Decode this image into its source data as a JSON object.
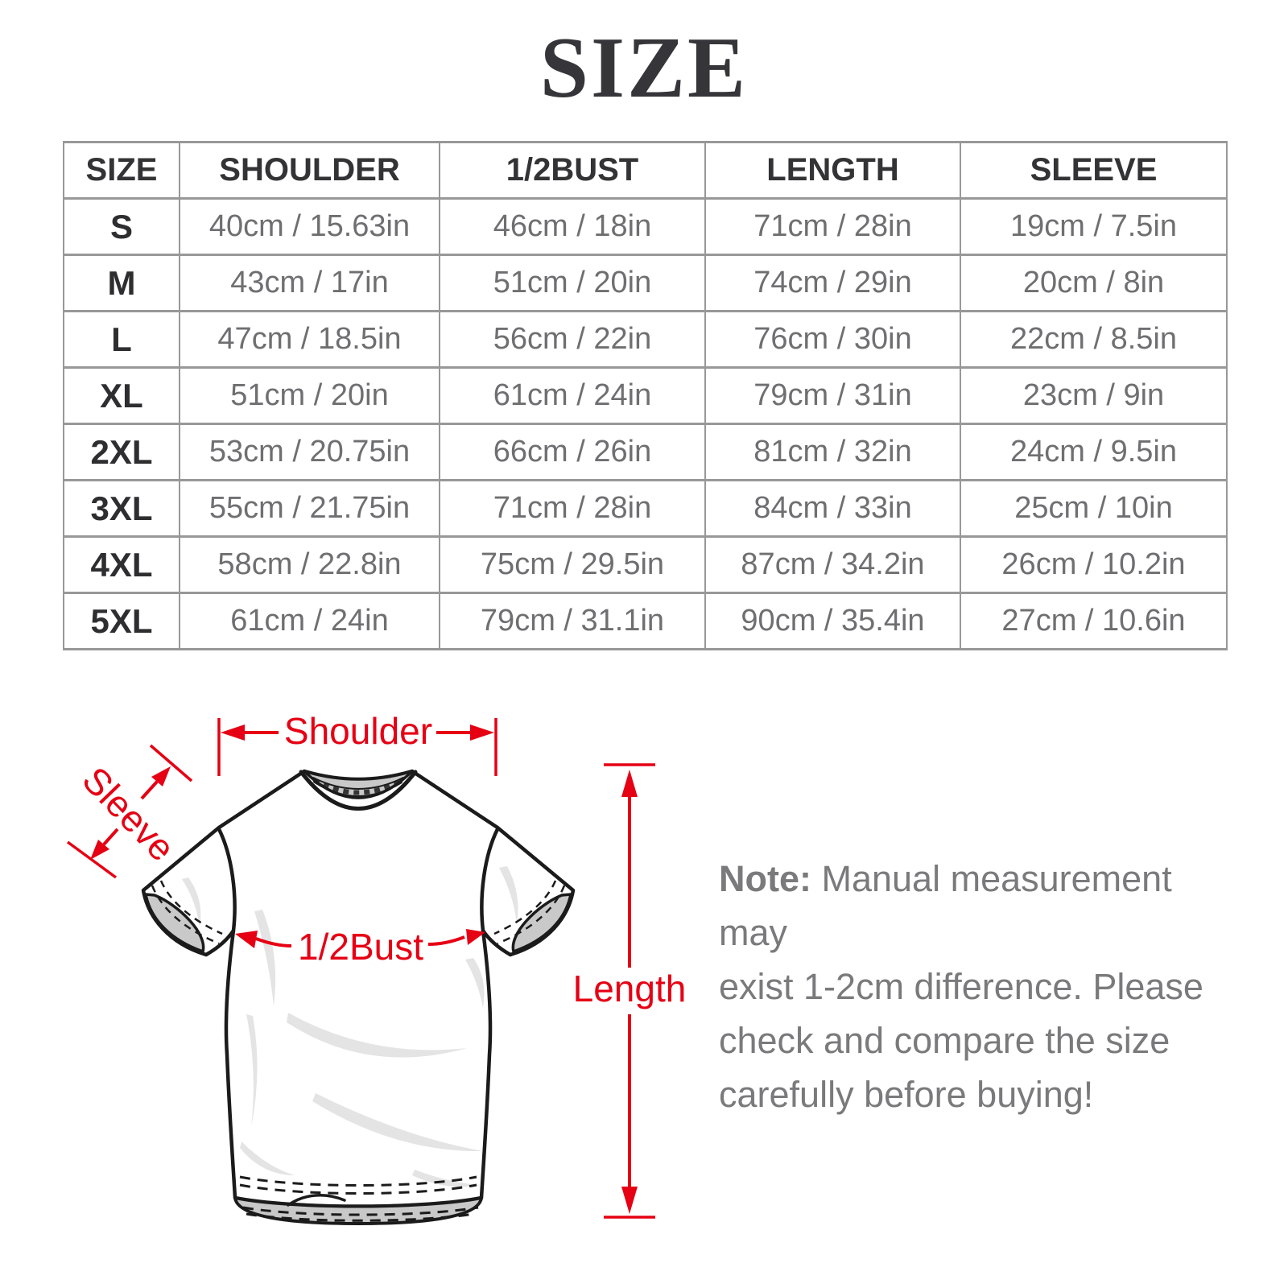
{
  "title": "SIZE",
  "chart_data": {
    "type": "table",
    "title": "SIZE",
    "columns": [
      "SIZE",
      "SHOULDER",
      "1/2BUST",
      "LENGTH",
      "SLEEVE"
    ],
    "rows": [
      [
        "S",
        "40cm / 15.63in",
        "46cm / 18in",
        "71cm / 28in",
        "19cm / 7.5in"
      ],
      [
        "M",
        "43cm / 17in",
        "51cm / 20in",
        "74cm / 29in",
        "20cm / 8in"
      ],
      [
        "L",
        "47cm / 18.5in",
        "56cm / 22in",
        "76cm / 30in",
        "22cm / 8.5in"
      ],
      [
        "XL",
        "51cm / 20in",
        "61cm / 24in",
        "79cm / 31in",
        "23cm / 9in"
      ],
      [
        "2XL",
        "53cm / 20.75in",
        "66cm / 26in",
        "81cm / 32in",
        "24cm / 9.5in"
      ],
      [
        "3XL",
        "55cm / 21.75in",
        "71cm / 28in",
        "84cm / 33in",
        "25cm / 10in"
      ],
      [
        "4XL",
        "58cm / 22.8in",
        "75cm / 29.5in",
        "87cm / 34.2in",
        "26cm / 10.2in"
      ],
      [
        "5XL",
        "61cm / 24in",
        "79cm / 31.1in",
        "90cm / 35.4in",
        "27cm / 10.6in"
      ]
    ]
  },
  "diagram": {
    "shoulder_label": "Shoulder",
    "sleeve_label": "Sleeve",
    "bust_label": "1/2Bust",
    "length_label": "Length",
    "annotation_color": "#e60014"
  },
  "note": {
    "label": "Note:",
    "line1_rest": " Manual measurement may",
    "line2": "exist 1-2cm difference. Please",
    "line3": "check and compare the size",
    "line4": "carefully before buying!"
  }
}
